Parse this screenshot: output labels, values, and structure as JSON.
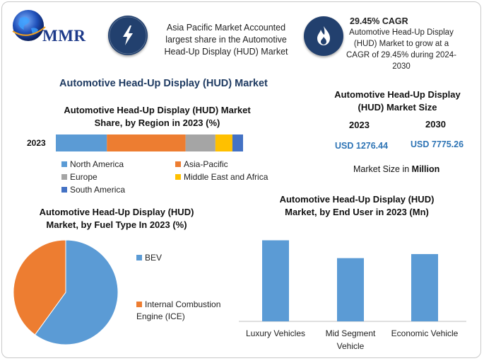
{
  "brand": {
    "logo_text": "MMR"
  },
  "header": {
    "left_text": "Asia Pacific Market Accounted largest share in the Automotive Head-Up Display (HUD) Market",
    "right_title": "29.45% CAGR",
    "right_text": "Automotive Head-Up Display (HUD) Market to grow at a CAGR of 29.45% during 2024-2030",
    "left_icon": "lightning-bolt-icon",
    "right_icon": "flame-icon",
    "icon_color": "#22406e"
  },
  "main_title": "Automotive Head-Up Display (HUD) Market",
  "market_size": {
    "title": "Automotive Head-Up Display (HUD) Market Size",
    "years": [
      "2023",
      "2030"
    ],
    "values": [
      "USD 1276.44",
      "USD 7775.26"
    ],
    "unit_prefix": "Market Size in ",
    "unit": "Million"
  },
  "chart_data": [
    {
      "type": "bar",
      "orientation": "horizontal-stacked",
      "title": "Automotive Head-Up Display (HUD) Market Share, by Region in 2023 (%)",
      "categories": [
        "2023"
      ],
      "series": [
        {
          "name": "North America",
          "values": [
            24
          ],
          "color": "#5b9bd5"
        },
        {
          "name": "Asia-Pacific",
          "values": [
            37
          ],
          "color": "#ed7d31"
        },
        {
          "name": "Europe",
          "values": [
            14
          ],
          "color": "#a5a5a5"
        },
        {
          "name": "Middle East and Africa",
          "values": [
            8
          ],
          "color": "#ffc000"
        },
        {
          "name": "South America",
          "values": [
            5
          ],
          "color": "#4472c4"
        }
      ],
      "legend_position": "bottom"
    },
    {
      "type": "pie",
      "title": "Automotive Head-Up Display (HUD) Market, by Fuel Type In 2023 (%)",
      "labels": [
        "BEV",
        "Internal Combustion Engine (ICE)"
      ],
      "values": [
        60,
        40
      ],
      "colors": [
        "#5b9bd5",
        "#ed7d31"
      ],
      "legend_position": "right"
    },
    {
      "type": "bar",
      "title": "Automotive Head-Up Display (HUD) Market, by End User in 2023 (Mn)",
      "categories": [
        "Luxury Vehicles",
        "Mid Segment Vehicle",
        "Economic Vehicle"
      ],
      "values": [
        500,
        390,
        415
      ],
      "ylim": [
        0,
        550
      ],
      "color": "#5b9bd5",
      "grid": false
    }
  ]
}
